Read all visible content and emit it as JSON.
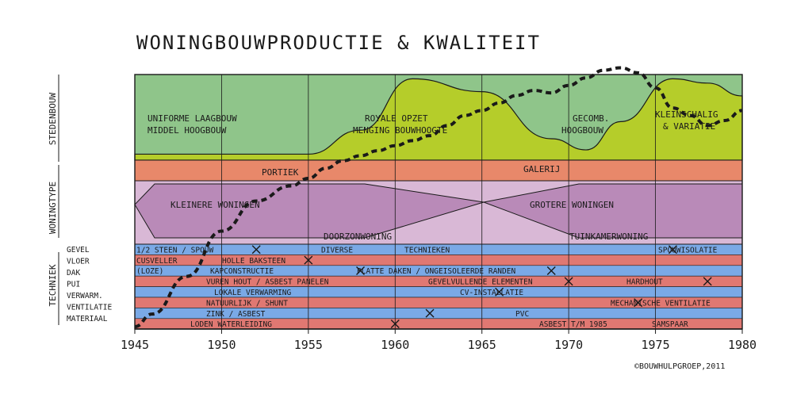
{
  "chart_data": {
    "type": "area",
    "title": "WONINGBOUWPRODUCTIE & KWALITEIT",
    "credit": "©BOUWHULPGROEP,2011",
    "xlim": [
      1945,
      1980
    ],
    "x_ticks": [
      "1945",
      "1950",
      "1955",
      "1960",
      "1965",
      "1970",
      "1975",
      "1980"
    ],
    "side_labels": [
      "STEDENBOUW",
      "WONINGTYPE",
      "TECHNIEK"
    ],
    "stedenbouw": {
      "labels": [
        "UNIFORME LAAGBOUW",
        "MIDDEL HOOGBOUW",
        "ROYALE OPZET",
        "MENGING BOUWHOOGTE",
        "GECOMB.",
        "HOOGBOUW",
        "KLEINSCHALIG",
        "& VARIATIE"
      ],
      "hoogbouw_wave": [
        {
          "x": 1945,
          "y": 0.07
        },
        {
          "x": 1955,
          "y": 0.07
        },
        {
          "x": 1958,
          "y": 0.35
        },
        {
          "x": 1961,
          "y": 0.95
        },
        {
          "x": 1965,
          "y": 0.8
        },
        {
          "x": 1969,
          "y": 0.25
        },
        {
          "x": 1971,
          "y": 0.12
        },
        {
          "x": 1973,
          "y": 0.45
        },
        {
          "x": 1976,
          "y": 0.95
        },
        {
          "x": 1978,
          "y": 0.9
        },
        {
          "x": 1980,
          "y": 0.75
        }
      ]
    },
    "woningtype": {
      "labels": [
        "PORTIEK",
        "GALERIJ",
        "KLEINERE WONINGEN",
        "GROTERE WONINGEN",
        "DOORZONWONING",
        "TUINKAMERWONING"
      ],
      "crossover_year": 1965
    },
    "techniek": {
      "rows": [
        "GEVEL",
        "VLOER",
        "DAK",
        "PUI",
        "VERWARM.",
        "VENTILATIE",
        "MATERIAAL"
      ],
      "bands": [
        {
          "row": 0,
          "segments": [
            "1/2 STEEN / SPOUW",
            "DIVERSE",
            "TECHNIEKEN",
            "SPOUWISOLATIE"
          ]
        },
        {
          "row": 1,
          "segments": [
            "CUSVELLER",
            "HOLLE BAKSTEEN"
          ]
        },
        {
          "row": 2,
          "segments": [
            "(LOZE)",
            "KAPCONSTRUCTIE",
            "PLATTE DAKEN / ONGEISOLEERDE RANDEN"
          ]
        },
        {
          "row": 3,
          "segments": [
            "VUREN HOUT / ASBEST PANELEN",
            "GEVELVULLENDE ELEMENTEN",
            "HARDHOUT"
          ]
        },
        {
          "row": 4,
          "segments": [
            "LOKALE VERWARMING",
            "CV-INSTALLATIE"
          ]
        },
        {
          "row": 5,
          "segments": [
            "NATUURLIJK / SHUNT",
            "MECHANISCHE VENTILATIE"
          ]
        },
        {
          "row": 6,
          "segments": [
            "ZINK / ASBEST",
            "PVC"
          ]
        },
        {
          "row": 7,
          "segments": [
            "LODEN WATERLEIDING",
            "ASBEST T/M 1985",
            "SAMSPAAR"
          ]
        }
      ]
    },
    "production_curve": {
      "name": "",
      "x": [
        1945,
        1946,
        1948,
        1950,
        1952,
        1954,
        1955,
        1956,
        1957,
        1958,
        1959,
        1960,
        1961,
        1962,
        1963,
        1964,
        1965,
        1966,
        1967,
        1968,
        1969,
        1970,
        1971,
        1972,
        1973,
        1974,
        1975,
        1976,
        1977,
        1978,
        1979,
        1980
      ],
      "y": [
        0.0,
        0.05,
        0.2,
        0.38,
        0.5,
        0.56,
        0.59,
        0.63,
        0.66,
        0.68,
        0.7,
        0.72,
        0.74,
        0.76,
        0.8,
        0.84,
        0.86,
        0.89,
        0.92,
        0.94,
        0.93,
        0.96,
        0.99,
        1.02,
        1.03,
        1.01,
        0.95,
        0.87,
        0.84,
        0.8,
        0.82,
        0.86
      ]
    }
  }
}
